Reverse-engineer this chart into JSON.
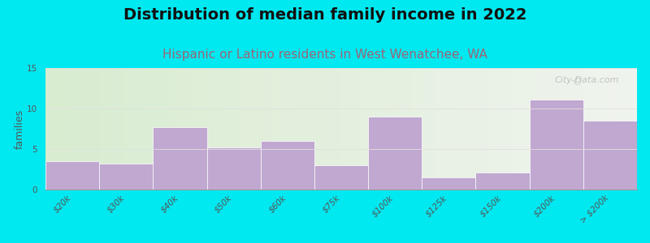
{
  "title": "Distribution of median family income in 2022",
  "subtitle": "Hispanic or Latino residents in West Wenatchee, WA",
  "categories": [
    "$20k",
    "$30k",
    "$40k",
    "$50k",
    "$60k",
    "$75k",
    "$100k",
    "$125k",
    "$150k",
    "$200k",
    "> $200k"
  ],
  "values": [
    3.5,
    3.2,
    7.7,
    5.2,
    6.0,
    3.0,
    9.0,
    1.5,
    2.1,
    11.1,
    8.5
  ],
  "bar_color": "#c0a8d0",
  "figure_bg": "#00e8f0",
  "plot_bg_left": "#d8ecd0",
  "plot_bg_right": "#f0f4ee",
  "title_color": "#111111",
  "subtitle_color": "#996677",
  "ylabel": "families",
  "ylim": [
    0,
    15
  ],
  "yticks": [
    0,
    5,
    10,
    15
  ],
  "title_fontsize": 14,
  "subtitle_fontsize": 11,
  "ylabel_fontsize": 9,
  "tick_fontsize": 7.5,
  "watermark_text": "City-Data.com",
  "watermark_color": "#bbbbbb",
  "grid_color": "#e0e0e0"
}
